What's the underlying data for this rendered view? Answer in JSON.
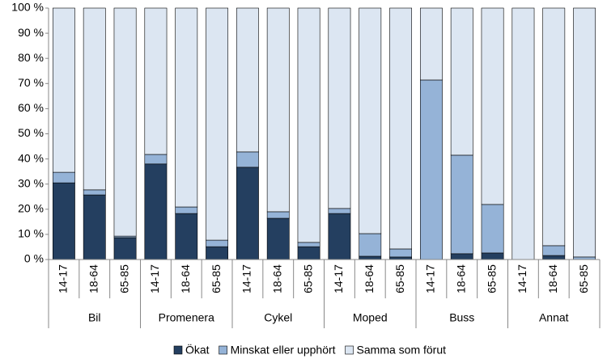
{
  "chart_data": {
    "type": "stacked-bar",
    "groups": [
      "Bil",
      "Promenera",
      "Cykel",
      "Moped",
      "Buss",
      "Annat"
    ],
    "categories": [
      "14-17",
      "18-64",
      "65-85",
      "14-17",
      "18-64",
      "65-85",
      "14-17",
      "18-64",
      "65-85",
      "14-17",
      "18-64",
      "65-85",
      "14-17",
      "18-64",
      "65-85",
      "14-17",
      "18-64",
      "65-85"
    ],
    "series": [
      {
        "name": "Ökat",
        "color": "#243f60",
        "values": [
          30.5,
          25.7,
          8.7,
          38,
          18.3,
          5.1,
          36.7,
          16.4,
          5.1,
          18.3,
          1.3,
          1,
          0,
          2.3,
          2.6,
          0,
          1.6,
          0
        ]
      },
      {
        "name": "Minskat eller upphört",
        "color": "#95b3d7",
        "values": [
          4.2,
          2,
          0.6,
          3.8,
          2.6,
          2.6,
          6.1,
          2.6,
          1.7,
          2,
          9,
          3.2,
          71.4,
          39.2,
          19.3,
          0,
          3.9,
          1
        ]
      },
      {
        "name": "Samma som förut",
        "color": "#dce6f2",
        "values": [
          65.3,
          72.3,
          90.7,
          58.2,
          79.1,
          92.3,
          57.2,
          81,
          93.2,
          79.7,
          89.7,
          95.8,
          28.6,
          58.5,
          78.1,
          100,
          94.5,
          99
        ]
      }
    ],
    "ylim": [
      0,
      100
    ],
    "yticks": [
      {
        "value": 0,
        "label": "0 %"
      },
      {
        "value": 10,
        "label": "10 %"
      },
      {
        "value": 20,
        "label": "20 %"
      },
      {
        "value": 30,
        "label": "30 %"
      },
      {
        "value": 40,
        "label": "40 %"
      },
      {
        "value": 50,
        "label": "50 %"
      },
      {
        "value": 60,
        "label": "60 %"
      },
      {
        "value": 70,
        "label": "70 %"
      },
      {
        "value": 80,
        "label": "80 %"
      },
      {
        "value": 90,
        "label": "90 %"
      },
      {
        "value": 100,
        "label": "100 %"
      }
    ],
    "legend": "bottom"
  }
}
